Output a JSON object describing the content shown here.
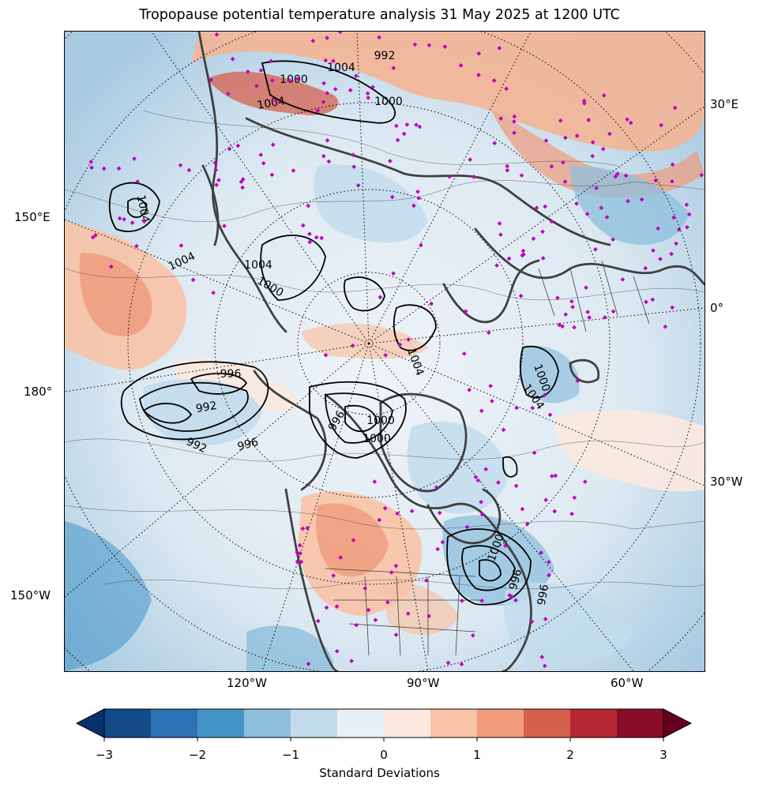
{
  "title": "Tropopause potential temperature analysis 31 May 2025 at 1200 UTC",
  "map": {
    "projection": "north-polar-stereographic",
    "longitude_labels": {
      "right_30e": "30°E",
      "right_0": "0°",
      "right_30w": "30°W",
      "left_150e": "150°E",
      "left_180": "180°",
      "left_150w": "150°W",
      "bottom_120w": "120°W",
      "bottom_90w": "90°W",
      "bottom_60w": "60°W"
    },
    "isobar_labels": [
      "1004",
      "1004",
      "1004",
      "1004",
      "1004",
      "1004",
      "1004",
      "1000",
      "1000",
      "1000",
      "1000",
      "1000",
      "996",
      "996",
      "996",
      "992",
      "992",
      "992",
      "996",
      "1000",
      "1000",
      "996"
    ],
    "station_marker_color": "#c000c0",
    "coastline_color": "#404040",
    "isobar_color": "#000000"
  },
  "colorbar": {
    "label": "Standard Deviations",
    "ticks": [
      "−3",
      "−2",
      "−1",
      "0",
      "1",
      "2",
      "3"
    ],
    "levels": [
      -3,
      -2.5,
      -2,
      -1.5,
      -1,
      -0.5,
      0,
      0.5,
      1,
      1.5,
      2,
      2.5,
      3
    ],
    "colors": [
      "#08306b",
      "#124a8a",
      "#2c72b4",
      "#4494c7",
      "#8ebfdc",
      "#c2dcec",
      "#e8f0f6",
      "#fbe9df",
      "#f8c3a6",
      "#ef9b7c",
      "#d5604d",
      "#b42732",
      "#8a0d28",
      "#67001f"
    ],
    "extend": "both"
  }
}
